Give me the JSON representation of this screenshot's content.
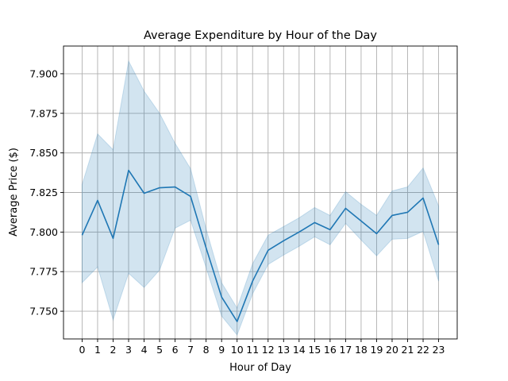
{
  "chart_data": {
    "type": "line",
    "title": "Average Expenditure by Hour of the Day",
    "xlabel": "Hour of Day",
    "ylabel": "Average Price ($)",
    "x": [
      0,
      1,
      2,
      3,
      4,
      5,
      6,
      7,
      8,
      9,
      10,
      11,
      12,
      13,
      14,
      15,
      16,
      17,
      18,
      19,
      20,
      21,
      22,
      23
    ],
    "xlim": [
      -1.2,
      24.2
    ],
    "ylim": [
      7.7325,
      7.9175
    ],
    "yticks": [
      7.75,
      7.775,
      7.8,
      7.825,
      7.85,
      7.875,
      7.9
    ],
    "ytick_labels": [
      "7.750",
      "7.775",
      "7.800",
      "7.825",
      "7.850",
      "7.875",
      "7.900"
    ],
    "grid": true,
    "series": [
      {
        "values": [
          7.798,
          7.82,
          7.796,
          7.839,
          7.8245,
          7.828,
          7.8285,
          7.8225,
          7.79,
          7.759,
          7.7435,
          7.769,
          7.7885,
          7.7945,
          7.8,
          7.806,
          7.8015,
          7.815,
          7.807,
          7.799,
          7.8105,
          7.8125,
          7.8215,
          7.792
        ],
        "ci_upper": [
          7.83,
          7.862,
          7.852,
          7.908,
          7.889,
          7.875,
          7.856,
          7.84,
          7.802,
          7.768,
          7.752,
          7.78,
          7.798,
          7.8035,
          7.809,
          7.8155,
          7.8105,
          7.8255,
          7.8175,
          7.8105,
          7.826,
          7.8285,
          7.8405,
          7.8165
        ],
        "ci_lower": [
          7.768,
          7.778,
          7.7445,
          7.774,
          7.765,
          7.776,
          7.8025,
          7.8075,
          7.7775,
          7.747,
          7.735,
          7.761,
          7.7795,
          7.7855,
          7.791,
          7.797,
          7.792,
          7.8055,
          7.795,
          7.785,
          7.7955,
          7.796,
          7.8005,
          7.769
        ],
        "color": "#1f77b4"
      }
    ]
  }
}
